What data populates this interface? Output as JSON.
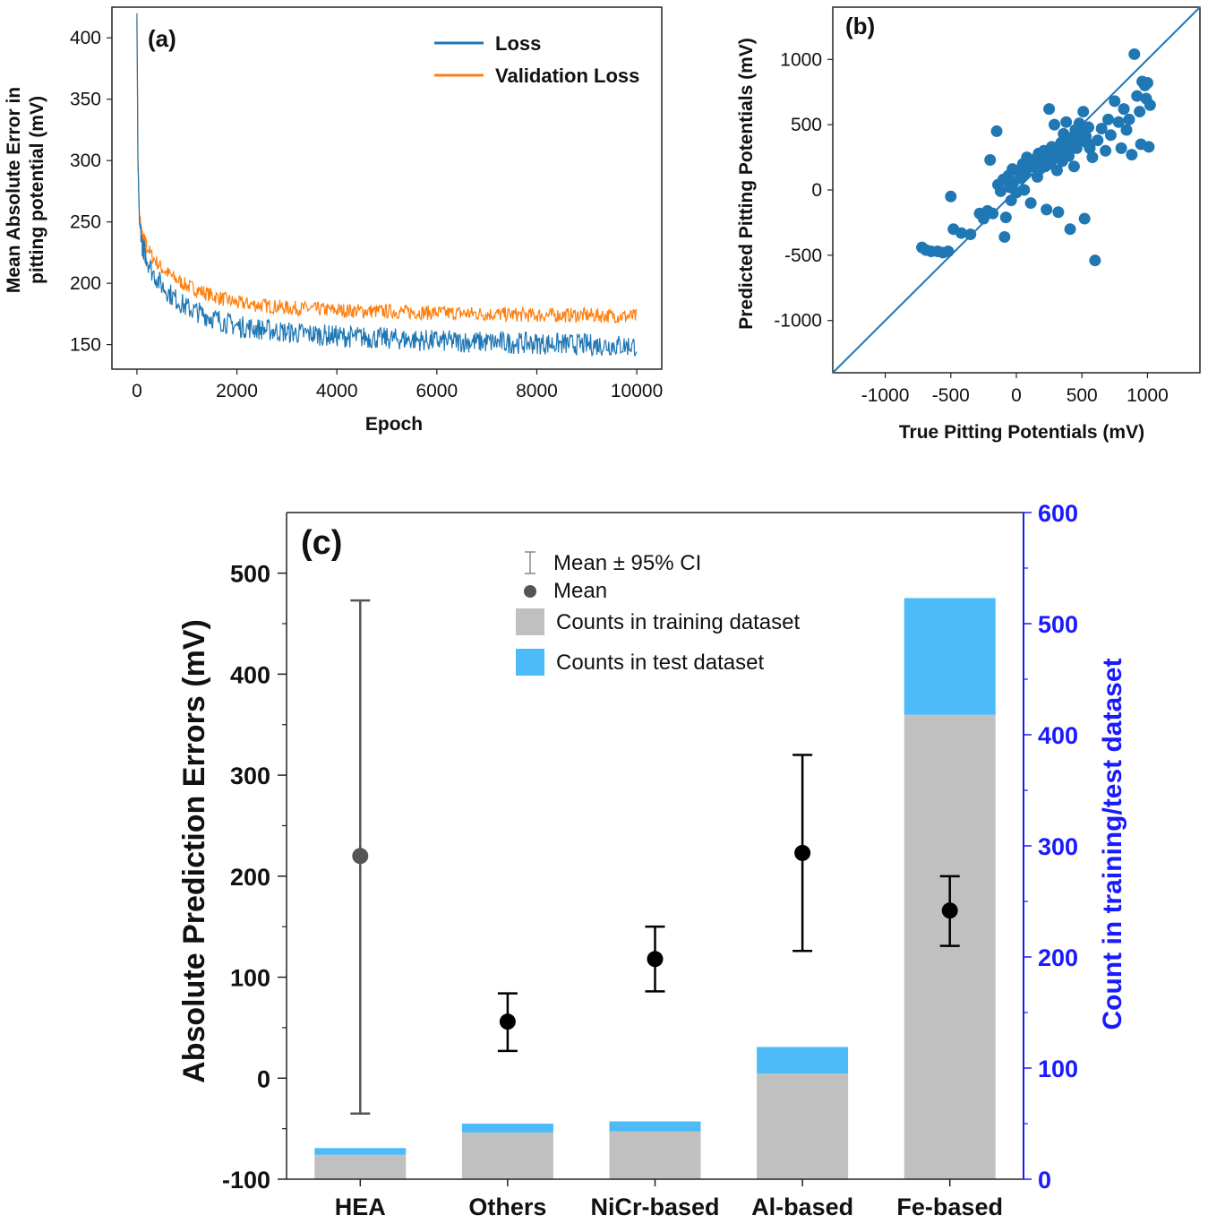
{
  "colors": {
    "loss": "#1f77b4",
    "validation_loss": "#ff7f0e",
    "scatter": "#1f77b4",
    "train_bar": "#c0c0c0",
    "test_bar": "#4dbbf7",
    "right_axis": "#1a1aff",
    "mean_hea": "#555555",
    "mean": "#000000"
  },
  "chart_data": [
    {
      "panel": "(a)",
      "type": "line",
      "xlabel": "Epoch",
      "ylabel_line1": "Mean Absolute Error in",
      "ylabel_line2": "pitting potential (mV)",
      "xlim": [
        -500,
        10500
      ],
      "ylim": [
        130,
        425
      ],
      "xticks": [
        0,
        2000,
        4000,
        6000,
        8000,
        10000
      ],
      "yticks": [
        150,
        200,
        250,
        300,
        350,
        400
      ],
      "legend_position": "top-right",
      "series": [
        {
          "name": "Loss",
          "key": "loss",
          "x": [
            0,
            20,
            50,
            100,
            200,
            300,
            500,
            750,
            1000,
            1500,
            2000,
            3000,
            4000,
            5000,
            6000,
            7000,
            8000,
            9000,
            10000
          ],
          "values": [
            420,
            300,
            250,
            232,
            220,
            210,
            198,
            188,
            180,
            172,
            165,
            160,
            157,
            155,
            153,
            152,
            151,
            150,
            149
          ]
        },
        {
          "name": "Validation Loss",
          "key": "validation_loss",
          "x": [
            0,
            20,
            50,
            100,
            200,
            300,
            500,
            750,
            1000,
            1500,
            2000,
            3000,
            4000,
            5000,
            6000,
            7000,
            8000,
            9000,
            10000
          ],
          "values": [
            415,
            305,
            255,
            240,
            230,
            222,
            212,
            204,
            198,
            190,
            184,
            180,
            178,
            177,
            176,
            175,
            174,
            174,
            173
          ]
        }
      ]
    },
    {
      "panel": "(b)",
      "type": "scatter",
      "xlabel": "True Pitting Potentials (mV)",
      "ylabel": "Predicted Pitting Potentials (mV)",
      "xlim": [
        -1400,
        1400
      ],
      "ylim": [
        -1400,
        1400
      ],
      "xticks": [
        -1000,
        -500,
        0,
        500,
        1000
      ],
      "yticks": [
        -1000,
        -500,
        0,
        500,
        1000
      ],
      "reference_line": "y = x",
      "points": [
        [
          -720,
          -440
        ],
        [
          -690,
          -460
        ],
        [
          -650,
          -470
        ],
        [
          -600,
          -470
        ],
        [
          -560,
          -480
        ],
        [
          -520,
          -470
        ],
        [
          -500,
          -50
        ],
        [
          -480,
          -300
        ],
        [
          -420,
          -330
        ],
        [
          -350,
          -340
        ],
        [
          -280,
          -180
        ],
        [
          -250,
          -220
        ],
        [
          -220,
          -160
        ],
        [
          -200,
          230
        ],
        [
          -180,
          -180
        ],
        [
          -150,
          450
        ],
        [
          -140,
          40
        ],
        [
          -120,
          -10
        ],
        [
          -100,
          80
        ],
        [
          -90,
          -360
        ],
        [
          -80,
          -210
        ],
        [
          -60,
          110
        ],
        [
          -50,
          20
        ],
        [
          -40,
          -80
        ],
        [
          -30,
          160
        ],
        [
          -20,
          60
        ],
        [
          0,
          -20
        ],
        [
          10,
          150
        ],
        [
          30,
          90
        ],
        [
          50,
          200
        ],
        [
          60,
          0
        ],
        [
          70,
          130
        ],
        [
          80,
          250
        ],
        [
          100,
          200
        ],
        [
          110,
          -100
        ],
        [
          120,
          180
        ],
        [
          130,
          220
        ],
        [
          150,
          240
        ],
        [
          160,
          100
        ],
        [
          170,
          280
        ],
        [
          180,
          160
        ],
        [
          200,
          220
        ],
        [
          210,
          300
        ],
        [
          220,
          180
        ],
        [
          230,
          -150
        ],
        [
          240,
          250
        ],
        [
          250,
          620
        ],
        [
          260,
          200
        ],
        [
          270,
          330
        ],
        [
          280,
          240
        ],
        [
          290,
          500
        ],
        [
          300,
          270
        ],
        [
          310,
          150
        ],
        [
          320,
          -170
        ],
        [
          330,
          300
        ],
        [
          340,
          360
        ],
        [
          350,
          220
        ],
        [
          360,
          430
        ],
        [
          370,
          280
        ],
        [
          380,
          520
        ],
        [
          390,
          330
        ],
        [
          400,
          260
        ],
        [
          410,
          -300
        ],
        [
          420,
          400
        ],
        [
          430,
          350
        ],
        [
          440,
          180
        ],
        [
          450,
          460
        ],
        [
          460,
          320
        ],
        [
          470,
          400
        ],
        [
          480,
          510
        ],
        [
          490,
          380
        ],
        [
          500,
          440
        ],
        [
          510,
          600
        ],
        [
          520,
          -220
        ],
        [
          530,
          410
        ],
        [
          540,
          360
        ],
        [
          550,
          480
        ],
        [
          560,
          320
        ],
        [
          580,
          250
        ],
        [
          600,
          -540
        ],
        [
          620,
          380
        ],
        [
          650,
          470
        ],
        [
          680,
          300
        ],
        [
          700,
          540
        ],
        [
          720,
          420
        ],
        [
          750,
          680
        ],
        [
          780,
          520
        ],
        [
          800,
          320
        ],
        [
          820,
          620
        ],
        [
          840,
          460
        ],
        [
          860,
          540
        ],
        [
          880,
          270
        ],
        [
          900,
          1040
        ],
        [
          920,
          720
        ],
        [
          940,
          600
        ],
        [
          950,
          350
        ],
        [
          960,
          830
        ],
        [
          980,
          800
        ],
        [
          990,
          700
        ],
        [
          1000,
          820
        ],
        [
          1010,
          330
        ],
        [
          1020,
          650
        ]
      ]
    },
    {
      "panel": "(c)",
      "type": "bar",
      "categories": [
        "HEA",
        "Others",
        "NiCr-based",
        "Al-based",
        "Fe-based"
      ],
      "ylabel": "Absolute Prediction Errors  (mV)",
      "ylabel_right": "Count in training/test dataset",
      "ylim": [
        -100,
        560
      ],
      "ylim_right": [
        0,
        600
      ],
      "yticks": [
        -100,
        0,
        100,
        200,
        300,
        400,
        500
      ],
      "yticks_right": [
        0,
        100,
        200,
        300,
        400,
        500,
        600
      ],
      "series": [
        {
          "name": "Counts in training dataset",
          "key": "train_bar",
          "axis": "right",
          "values": [
            22,
            42,
            43,
            95,
            418
          ]
        },
        {
          "name": "Counts in test dataset",
          "key": "test_bar",
          "axis": "right",
          "values": [
            6,
            8,
            9,
            24,
            105
          ]
        },
        {
          "name": "Mean",
          "key": "mean",
          "axis": "left",
          "values": [
            220,
            56,
            118,
            223,
            166
          ]
        },
        {
          "name": "Mean ± 95% CI lower",
          "axis": "left",
          "values": [
            -35,
            27,
            86,
            126,
            131
          ]
        },
        {
          "name": "Mean ± 95% CI upper",
          "axis": "left",
          "values": [
            473,
            84,
            150,
            320,
            200
          ]
        }
      ],
      "legend": [
        {
          "symbol": "errorbar",
          "label": "Mean ± 95% CI"
        },
        {
          "symbol": "dot",
          "label": "Mean"
        },
        {
          "symbol": "train_bar",
          "label": "Counts in training dataset"
        },
        {
          "symbol": "test_bar",
          "label": "Counts in test dataset"
        }
      ]
    }
  ]
}
